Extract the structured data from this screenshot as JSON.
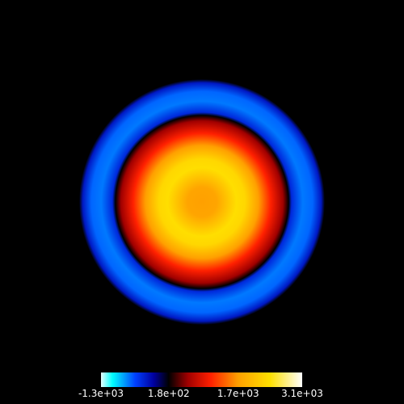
{
  "chart_data": {
    "type": "heatmap",
    "description_kind": "radial-intensity-image",
    "value_range": [
      -1300,
      3100
    ],
    "colormap": [
      {
        "value": -1300,
        "color": "#e6ffff"
      },
      {
        "value": -1050,
        "color": "#00ffff"
      },
      {
        "value": -550,
        "color": "#0040ff"
      },
      {
        "value": -150,
        "color": "#0000a0"
      },
      {
        "value": 180,
        "color": "#000000"
      },
      {
        "value": 600,
        "color": "#a00000"
      },
      {
        "value": 1100,
        "color": "#ff2000"
      },
      {
        "value": 1700,
        "color": "#ffa000"
      },
      {
        "value": 2400,
        "color": "#ffe000"
      },
      {
        "value": 3100,
        "color": "#ffffff"
      }
    ],
    "radial_profile": [
      {
        "r": 0.0,
        "value": 1700
      },
      {
        "r": 0.12,
        "value": 1750
      },
      {
        "r": 0.28,
        "value": 2380
      },
      {
        "r": 0.35,
        "value": 2300
      },
      {
        "r": 0.46,
        "value": 1700
      },
      {
        "r": 0.56,
        "value": 1100
      },
      {
        "r": 0.66,
        "value": 600
      },
      {
        "r": 0.705,
        "value": 180
      },
      {
        "r": 0.73,
        "value": -400
      },
      {
        "r": 0.82,
        "value": -700
      },
      {
        "r": 0.9,
        "value": -650
      },
      {
        "r": 0.97,
        "value": -300
      },
      {
        "r": 1.0,
        "value": 180
      }
    ],
    "colorbar": {
      "ticks": [
        {
          "value": -1300,
          "label": "-1.3e+03"
        },
        {
          "value": 180,
          "label": "1.8e+02"
        },
        {
          "value": 1700,
          "label": "1.7e+03"
        },
        {
          "value": 3100,
          "label": "3.1e+03"
        }
      ]
    },
    "background": "#000000",
    "grid": false
  }
}
